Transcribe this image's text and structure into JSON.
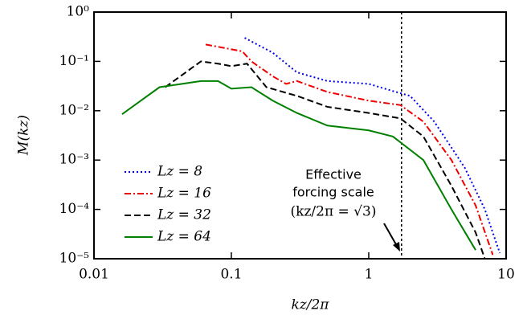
{
  "chart_data": {
    "type": "line",
    "xlabel": "kz/2π",
    "ylabel": "M(kz)",
    "xscale": "log",
    "yscale": "log",
    "xlim": [
      0.01,
      10
    ],
    "ylim": [
      1e-05,
      1
    ],
    "xticks": [
      0.01,
      0.1,
      1,
      10
    ],
    "yticks": [
      {
        "value": 1e-05,
        "label": "10⁻⁵"
      },
      {
        "value": 0.0001,
        "label": "10⁻⁴"
      },
      {
        "value": 0.001,
        "label": "10⁻³"
      },
      {
        "value": 0.01,
        "label": "10⁻²"
      },
      {
        "value": 0.1,
        "label": "10⁻¹"
      },
      {
        "value": 1,
        "label": "10⁰"
      }
    ],
    "legend": "lower left",
    "vline": 1.732,
    "annotation": [
      "Effective",
      "forcing scale",
      "(kz/2π = √3)"
    ],
    "series": [
      {
        "name": "Lz = 8",
        "color": "#0000ee",
        "dash": "dotted",
        "x": [
          0.125,
          0.2,
          0.3,
          0.5,
          1,
          1.5,
          2,
          3,
          5,
          7,
          9
        ],
        "values": [
          0.3,
          0.15,
          0.06,
          0.04,
          0.035,
          0.025,
          0.02,
          0.006,
          0.0007,
          0.0001,
          1.3e-05
        ]
      },
      {
        "name": "Lz = 16",
        "color": "#ee0000",
        "dash": "dashdot",
        "x": [
          0.065,
          0.12,
          0.14,
          0.2,
          0.25,
          0.3,
          0.5,
          1,
          1.7,
          2.5,
          4,
          6,
          8
        ],
        "values": [
          0.22,
          0.16,
          0.1,
          0.05,
          0.035,
          0.04,
          0.024,
          0.016,
          0.013,
          0.006,
          0.001,
          0.00012,
          1.2e-05
        ]
      },
      {
        "name": "Lz = 32",
        "color": "#000000",
        "dash": "dashed",
        "x": [
          0.033,
          0.06,
          0.08,
          0.1,
          0.13,
          0.18,
          0.3,
          0.5,
          1,
          1.7,
          2.5,
          4,
          6,
          7
        ],
        "values": [
          0.03,
          0.1,
          0.09,
          0.08,
          0.09,
          0.03,
          0.02,
          0.012,
          0.009,
          0.007,
          0.003,
          0.0003,
          3.4e-05,
          1e-05
        ]
      },
      {
        "name": "Lz = 64",
        "color": "#008000",
        "dash": "solid",
        "x": [
          0.016,
          0.03,
          0.06,
          0.08,
          0.1,
          0.14,
          0.2,
          0.3,
          0.5,
          1,
          1.5,
          2.5,
          4,
          6
        ],
        "values": [
          0.0085,
          0.03,
          0.04,
          0.04,
          0.028,
          0.03,
          0.016,
          0.009,
          0.005,
          0.004,
          0.003,
          0.001,
          0.0001,
          1.5e-05
        ]
      }
    ]
  }
}
